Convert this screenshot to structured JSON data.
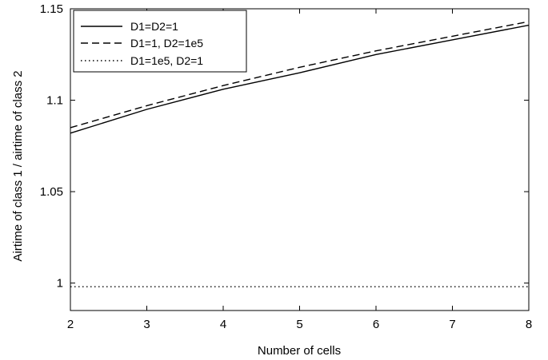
{
  "chart_data": {
    "type": "line",
    "title": "",
    "xlabel": "Number of cells",
    "ylabel": "Airtime of class 1 / airtime of class 2",
    "xlim": [
      2,
      8
    ],
    "ylim": [
      0.985,
      1.15
    ],
    "xticks": [
      2,
      3,
      4,
      5,
      6,
      7,
      8
    ],
    "xtick_labels": [
      "2",
      "3",
      "4",
      "5",
      "6",
      "7",
      "8"
    ],
    "yticks": [
      1,
      1.05,
      1.1,
      1.15
    ],
    "ytick_labels": [
      "1",
      "1.05",
      "1.1",
      "1.15"
    ],
    "grid": false,
    "legend_position": "top-left",
    "x": [
      2,
      3,
      4,
      5,
      6,
      7,
      8
    ],
    "series": [
      {
        "name": "D1=D2=1",
        "style": "solid",
        "values": [
          1.082,
          1.095,
          1.106,
          1.115,
          1.125,
          1.133,
          1.141
        ]
      },
      {
        "name": "D1=1, D2=1e5",
        "style": "dashed",
        "values": [
          1.085,
          1.097,
          1.108,
          1.118,
          1.127,
          1.135,
          1.143
        ]
      },
      {
        "name": "D1=1e5, D2=1",
        "style": "dotted",
        "values": [
          0.998,
          0.998,
          0.998,
          0.998,
          0.998,
          0.998,
          0.998
        ]
      }
    ]
  }
}
